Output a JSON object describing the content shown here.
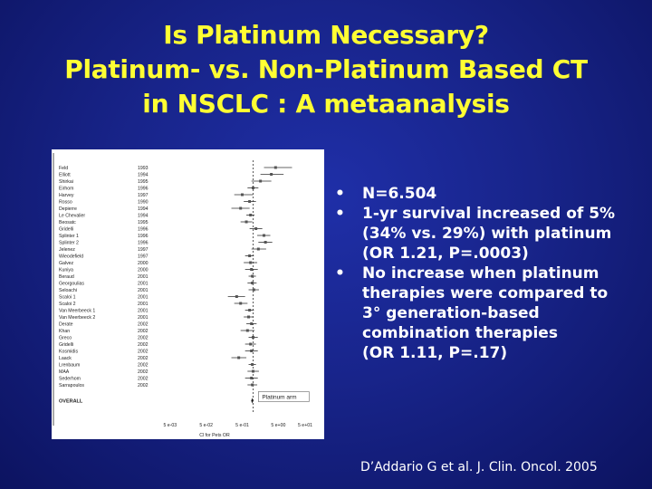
{
  "title": {
    "line1": "Is Platinum Necessary?",
    "line2": "Platinum- vs. Non-Platinum Based CT",
    "line3": "in NSCLC : A metaanalysis"
  },
  "bullets": [
    {
      "marker": "•",
      "lines": [
        "N=6.504"
      ]
    },
    {
      "marker": "•",
      "lines": [
        "1-yr survival increased of 5%",
        "(34% vs. 29%) with platinum",
        "(OR 1.21, P=.0003)"
      ]
    },
    {
      "marker": "•",
      "lines": [
        "No increase when platinum",
        "therapies were compared to",
        "3° generation-based",
        "combination therapies",
        "(OR 1.11, P=.17)"
      ]
    }
  ],
  "citation": "D’Addario G et al. J. Clin. Oncol. 2005",
  "forest_plot": {
    "studies": [
      {
        "name": "Feld",
        "year": "1993",
        "or": 4.2,
        "lo": 2.0,
        "hi": 12.0
      },
      {
        "name": "Elliott",
        "year": "1994",
        "or": 3.2,
        "lo": 1.6,
        "hi": 7.0
      },
      {
        "name": "Shirkai",
        "year": "1995",
        "or": 1.6,
        "lo": 0.9,
        "hi": 3.2
      },
      {
        "name": "Eirhom",
        "year": "1996",
        "or": 1.0,
        "lo": 0.7,
        "hi": 1.4
      },
      {
        "name": "Harvey",
        "year": "1997",
        "or": 0.5,
        "lo": 0.3,
        "hi": 1.0
      },
      {
        "name": "Rosso",
        "year": "1990",
        "or": 0.8,
        "lo": 0.55,
        "hi": 1.2
      },
      {
        "name": "Depierre",
        "year": "1994",
        "or": 0.45,
        "lo": 0.25,
        "hi": 0.8
      },
      {
        "name": "Le Chevalier",
        "year": "1994",
        "or": 0.85,
        "lo": 0.65,
        "hi": 1.1
      },
      {
        "name": "Beosatc",
        "year": "1995",
        "or": 0.65,
        "lo": 0.45,
        "hi": 0.95
      },
      {
        "name": "Gridelli",
        "year": "1996",
        "or": 1.2,
        "lo": 0.8,
        "hi": 1.8
      },
      {
        "name": "Splinter 1",
        "year": "1996",
        "or": 2.0,
        "lo": 1.3,
        "hi": 3.0
      },
      {
        "name": "Splinter 2",
        "year": "1996",
        "or": 2.2,
        "lo": 1.4,
        "hi": 3.4
      },
      {
        "name": "Jelenez",
        "year": "1997",
        "or": 1.4,
        "lo": 0.9,
        "hi": 2.3
      },
      {
        "name": "Wieodefield",
        "year": "1997",
        "or": 0.8,
        "lo": 0.6,
        "hi": 1.05
      },
      {
        "name": "Galvez",
        "year": "2000",
        "or": 0.85,
        "lo": 0.55,
        "hi": 1.3
      },
      {
        "name": "Kuniya",
        "year": "2000",
        "or": 0.9,
        "lo": 0.6,
        "hi": 1.35
      },
      {
        "name": "Beraud",
        "year": "2001",
        "or": 0.95,
        "lo": 0.75,
        "hi": 1.2
      },
      {
        "name": "Georgoulias",
        "year": "2001",
        "or": 0.95,
        "lo": 0.7,
        "hi": 1.25
      },
      {
        "name": "Seloachi",
        "year": "2001",
        "or": 1.05,
        "lo": 0.75,
        "hi": 1.45
      },
      {
        "name": "Scaloi 1",
        "year": "2001",
        "or": 0.35,
        "lo": 0.2,
        "hi": 0.6
      },
      {
        "name": "Scaloi 2",
        "year": "2001",
        "or": 0.45,
        "lo": 0.3,
        "hi": 0.7
      },
      {
        "name": "Van Meerbeeck 1",
        "year": "2001",
        "or": 0.8,
        "lo": 0.6,
        "hi": 1.05
      },
      {
        "name": "Van Meerbeeck 2",
        "year": "2001",
        "or": 0.75,
        "lo": 0.55,
        "hi": 1.0
      },
      {
        "name": "Derate",
        "year": "2002",
        "or": 0.9,
        "lo": 0.65,
        "hi": 1.25
      },
      {
        "name": "Khan",
        "year": "2002",
        "or": 0.7,
        "lo": 0.45,
        "hi": 1.1
      },
      {
        "name": "Greco",
        "year": "2002",
        "or": 1.0,
        "lo": 0.75,
        "hi": 1.35
      },
      {
        "name": "Gridelli",
        "year": "2002",
        "or": 0.85,
        "lo": 0.6,
        "hi": 1.2
      },
      {
        "name": "Kosmidis",
        "year": "2002",
        "or": 0.9,
        "lo": 0.6,
        "hi": 1.35
      },
      {
        "name": "Laack",
        "year": "2002",
        "or": 0.4,
        "lo": 0.25,
        "hi": 0.65
      },
      {
        "name": "Lrenbaum",
        "year": "2002",
        "or": 0.95,
        "lo": 0.75,
        "hi": 1.2
      },
      {
        "name": "MAA",
        "year": "2002",
        "or": 1.0,
        "lo": 0.7,
        "hi": 1.45
      },
      {
        "name": "Sederhom",
        "year": "2002",
        "or": 0.9,
        "lo": 0.6,
        "hi": 1.35
      },
      {
        "name": "Sarrapoulos",
        "year": "2002",
        "or": 0.95,
        "lo": 0.7,
        "hi": 1.3
      }
    ],
    "overall_label": "OVERALL",
    "overall": {
      "or": 0.95,
      "lo": 0.88,
      "hi": 1.02
    },
    "arm_label": "Platinum arm",
    "x_ticks": [
      {
        "label": "5 e-03",
        "value": 0.005
      },
      {
        "label": "5 e-02",
        "value": 0.05
      },
      {
        "label": "5 e-01",
        "value": 0.5
      },
      {
        "label": "5 e+00",
        "value": 5
      },
      {
        "label": "5 e+01",
        "value": 50
      }
    ],
    "x_label": "Cl for Pets OR",
    "x_range": [
      0.003,
      70
    ],
    "reference_line": 1
  }
}
